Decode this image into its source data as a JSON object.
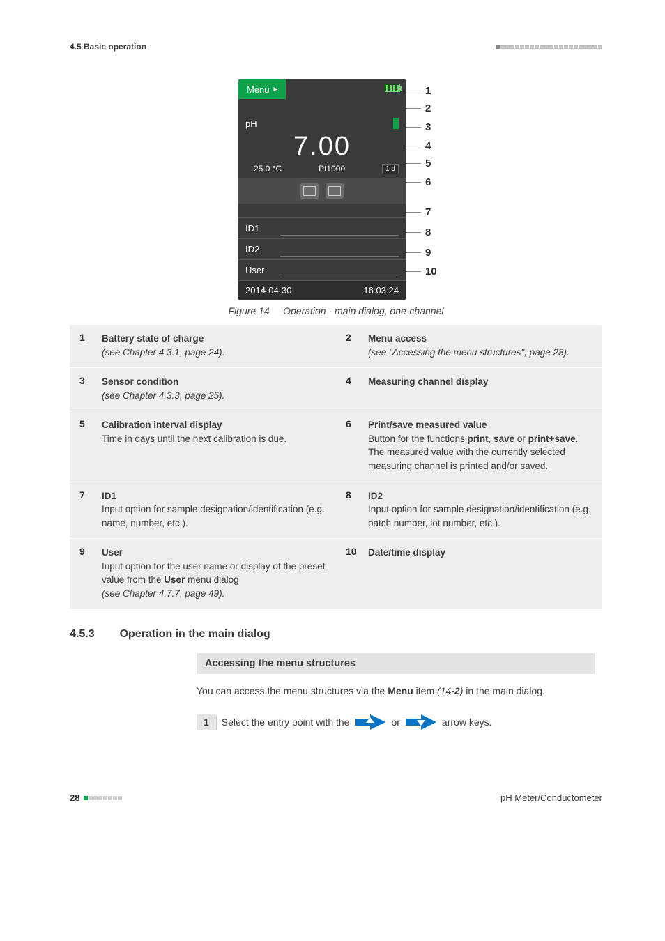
{
  "header": {
    "section": "4.5 Basic operation"
  },
  "device": {
    "menu_label": "Menu",
    "ph_label": "pH",
    "ph_value": "7.00",
    "temp": "25.0 °C",
    "probe": "Pt1000",
    "cal_due": "1 d",
    "id1": "ID1",
    "id2": "ID2",
    "user": "User",
    "date": "2014-04-30",
    "time": "16:03:24"
  },
  "callouts": [
    "1",
    "2",
    "3",
    "4",
    "5",
    "6",
    "7",
    "8",
    "9",
    "10"
  ],
  "figure": {
    "label": "Figure 14",
    "caption": "Operation - main dialog, one-channel"
  },
  "legend": [
    [
      {
        "n": "1",
        "title": "Battery state of charge",
        "body": "",
        "ref": "(see Chapter 4.3.1, page 24)."
      },
      {
        "n": "2",
        "title": "Menu access",
        "body": "",
        "ref": "(see \"Accessing the menu structures\", page 28)."
      }
    ],
    [
      {
        "n": "3",
        "title": "Sensor condition",
        "body": "",
        "ref": "(see Chapter 4.3.3, page 25)."
      },
      {
        "n": "4",
        "title": "Measuring channel display",
        "body": "",
        "ref": ""
      }
    ],
    [
      {
        "n": "5",
        "title": "Calibration interval display",
        "body": "Time in days until the next calibration is due.",
        "ref": ""
      },
      {
        "n": "6",
        "title": "Print/save measured value",
        "body": "Button for the functions <b>print</b>, <b>save</b> or <b>print+save</b>.<br>The measured value with the currently selected measuring channel is printed and/or saved.",
        "ref": ""
      }
    ],
    [
      {
        "n": "7",
        "title": "ID1",
        "body": "Input option for sample designation/identification (e.g. name, number, etc.).",
        "ref": ""
      },
      {
        "n": "8",
        "title": "ID2",
        "body": "Input option for sample designation/identification (e.g. batch number, lot number, etc.).",
        "ref": ""
      }
    ],
    [
      {
        "n": "9",
        "title": "User",
        "body": "Input option for the user name or display of the preset value from the <b>User</b> menu dialog",
        "ref": "(see Chapter 4.7.7, page 49)."
      },
      {
        "n": "10",
        "title": "Date/time display",
        "body": "",
        "ref": ""
      }
    ]
  ],
  "section": {
    "num": "4.5.3",
    "title": "Operation in the main dialog"
  },
  "sub": {
    "title": "Accessing the menu structures",
    "para_pre": "You can access the menu structures via the ",
    "para_bold": "Menu",
    "para_post_italic": "(14-",
    "para_post_bolditalic": "2",
    "para_post_after": ") ",
    "para_tail": "in the main dialog.",
    "step_n": "1",
    "step_pre": "Select the entry point with the ",
    "step_mid": " or ",
    "step_post": " arrow keys."
  },
  "footer": {
    "page": "28",
    "right": "pH Meter/Conductometer"
  },
  "colors": {
    "green": "#0fa24a",
    "blue": "#0b74c4",
    "grey_bg": "#eeeeee",
    "screen_bg": "#3a3a3a"
  }
}
